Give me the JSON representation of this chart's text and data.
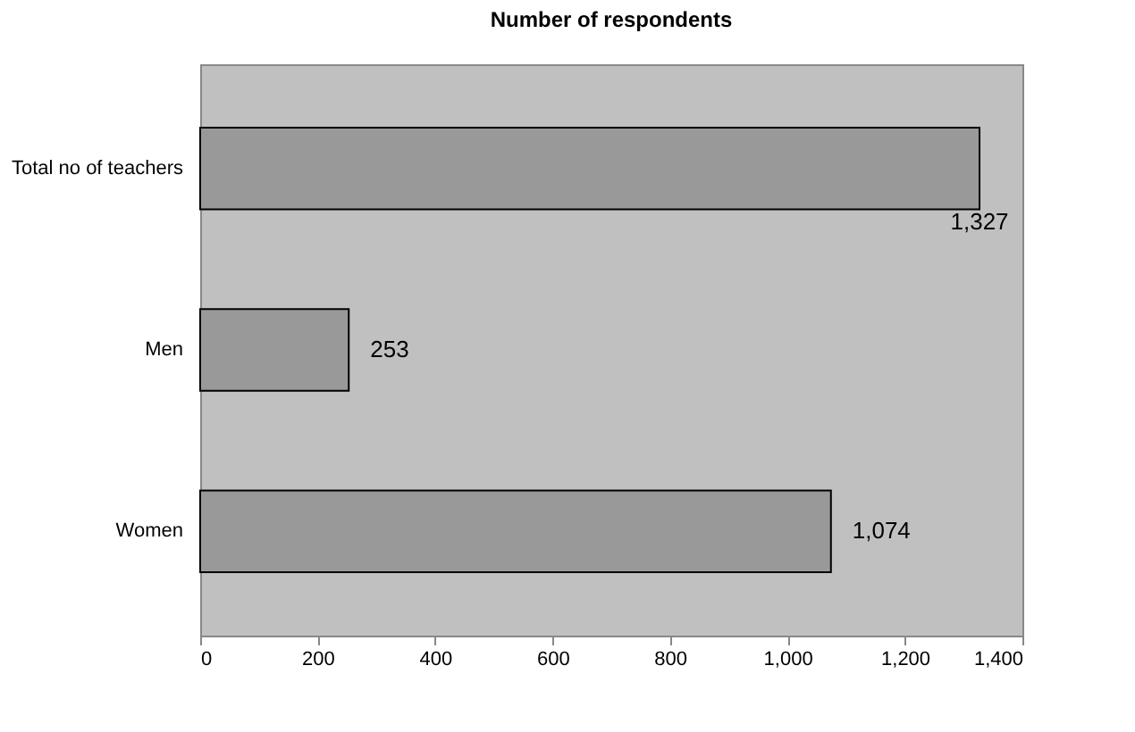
{
  "chart_data": {
    "type": "bar",
    "orientation": "horizontal",
    "title": "Number of respondents",
    "categories": [
      "Total no of teachers",
      "Men",
      "Women"
    ],
    "values": [
      1327,
      253,
      1074
    ],
    "value_labels": [
      "1,327",
      "253",
      "1,074"
    ],
    "color": "#999999",
    "xlim": [
      0,
      1400
    ],
    "xticks": [
      0,
      200,
      400,
      600,
      800,
      {
        "value": 1000,
        "label": "1,000"
      },
      {
        "value": 1200,
        "label": "1,200"
      },
      {
        "value": 1400,
        "label": "1,400"
      }
    ],
    "grid": false
  }
}
